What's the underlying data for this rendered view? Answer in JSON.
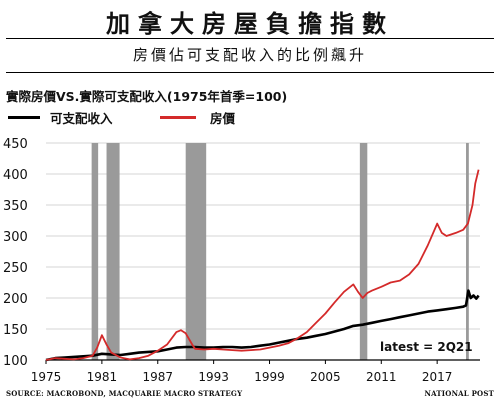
{
  "header": {
    "title": "加拿大房屋負擔指數",
    "subtitle": "房價佔可支配收入的比例飆升"
  },
  "chart_data": {
    "type": "line",
    "title": "實際房價VS.實際可支配收入(1975年首季=100)",
    "xlabel": "",
    "ylabel": "",
    "xlim": [
      1975,
      2021.6
    ],
    "ylim": [
      100,
      450
    ],
    "yticks": [
      100,
      150,
      200,
      250,
      300,
      350,
      400,
      450
    ],
    "xticks": [
      1975,
      1981,
      1987,
      1993,
      1999,
      2005,
      2011,
      2017
    ],
    "grid": "horizontal",
    "legend_position": "top-left",
    "recessions": [
      [
        1979.9,
        1980.6
      ],
      [
        1981.5,
        1982.9
      ],
      [
        1990.0,
        1992.2
      ],
      [
        2008.7,
        2009.5
      ],
      [
        2020.1,
        2020.4
      ]
    ],
    "annotation": "latest = 2Q21",
    "series": [
      {
        "name": "可支配收入",
        "color": "#000000",
        "points": [
          [
            1975,
            100
          ],
          [
            1976,
            103
          ],
          [
            1977,
            104
          ],
          [
            1978,
            105
          ],
          [
            1979,
            106
          ],
          [
            1980,
            107
          ],
          [
            1981,
            110
          ],
          [
            1982,
            109
          ],
          [
            1983,
            108
          ],
          [
            1984,
            110
          ],
          [
            1985,
            112
          ],
          [
            1986,
            113
          ],
          [
            1987,
            114
          ],
          [
            1988,
            117
          ],
          [
            1989,
            120
          ],
          [
            1990,
            121
          ],
          [
            1991,
            121
          ],
          [
            1992,
            120
          ],
          [
            1993,
            120
          ],
          [
            1994,
            121
          ],
          [
            1995,
            121
          ],
          [
            1996,
            120
          ],
          [
            1997,
            121
          ],
          [
            1998,
            123
          ],
          [
            1999,
            125
          ],
          [
            2000,
            128
          ],
          [
            2001,
            131
          ],
          [
            2002,
            134
          ],
          [
            2003,
            136
          ],
          [
            2004,
            139
          ],
          [
            2005,
            142
          ],
          [
            2006,
            146
          ],
          [
            2007,
            150
          ],
          [
            2008,
            155
          ],
          [
            2009,
            157
          ],
          [
            2010,
            160
          ],
          [
            2011,
            163
          ],
          [
            2012,
            166
          ],
          [
            2013,
            169
          ],
          [
            2014,
            172
          ],
          [
            2015,
            175
          ],
          [
            2016,
            178
          ],
          [
            2017,
            180
          ],
          [
            2018,
            182
          ],
          [
            2019,
            184
          ],
          [
            2019.8,
            186
          ],
          [
            2020.1,
            188
          ],
          [
            2020.35,
            212
          ],
          [
            2020.6,
            200
          ],
          [
            2020.9,
            204
          ],
          [
            2021.2,
            199
          ],
          [
            2021.45,
            204
          ]
        ]
      },
      {
        "name": "房價",
        "color": "#d42a2a",
        "points": [
          [
            1975,
            100
          ],
          [
            1976,
            103
          ],
          [
            1977,
            102
          ],
          [
            1978,
            101
          ],
          [
            1979,
            103
          ],
          [
            1980,
            107
          ],
          [
            1980.5,
            120
          ],
          [
            1981,
            140
          ],
          [
            1981.5,
            125
          ],
          [
            1982,
            112
          ],
          [
            1983,
            104
          ],
          [
            1984,
            101
          ],
          [
            1985,
            103
          ],
          [
            1986,
            107
          ],
          [
            1987,
            115
          ],
          [
            1988,
            125
          ],
          [
            1989,
            145
          ],
          [
            1989.5,
            148
          ],
          [
            1990,
            143
          ],
          [
            1990.7,
            125
          ],
          [
            1991,
            118
          ],
          [
            1992,
            117
          ],
          [
            1993,
            118
          ],
          [
            1994,
            117
          ],
          [
            1995,
            116
          ],
          [
            1996,
            115
          ],
          [
            1997,
            116
          ],
          [
            1998,
            117
          ],
          [
            1999,
            120
          ],
          [
            2000,
            123
          ],
          [
            2001,
            127
          ],
          [
            2002,
            135
          ],
          [
            2003,
            145
          ],
          [
            2004,
            160
          ],
          [
            2005,
            175
          ],
          [
            2006,
            193
          ],
          [
            2007,
            210
          ],
          [
            2008,
            222
          ],
          [
            2008.5,
            210
          ],
          [
            2009,
            200
          ],
          [
            2009.5,
            208
          ],
          [
            2010,
            212
          ],
          [
            2011,
            218
          ],
          [
            2012,
            225
          ],
          [
            2013,
            228
          ],
          [
            2014,
            238
          ],
          [
            2015,
            255
          ],
          [
            2016,
            285
          ],
          [
            2017,
            320
          ],
          [
            2017.5,
            305
          ],
          [
            2018,
            300
          ],
          [
            2019,
            305
          ],
          [
            2019.8,
            310
          ],
          [
            2020.3,
            320
          ],
          [
            2020.8,
            350
          ],
          [
            2021.1,
            385
          ],
          [
            2021.45,
            407
          ]
        ]
      }
    ]
  },
  "footer": {
    "source": "SOURCE: MACROBOND, MACQUARIE MACRO STRATEGY",
    "credit": "NATIONAL POST"
  }
}
